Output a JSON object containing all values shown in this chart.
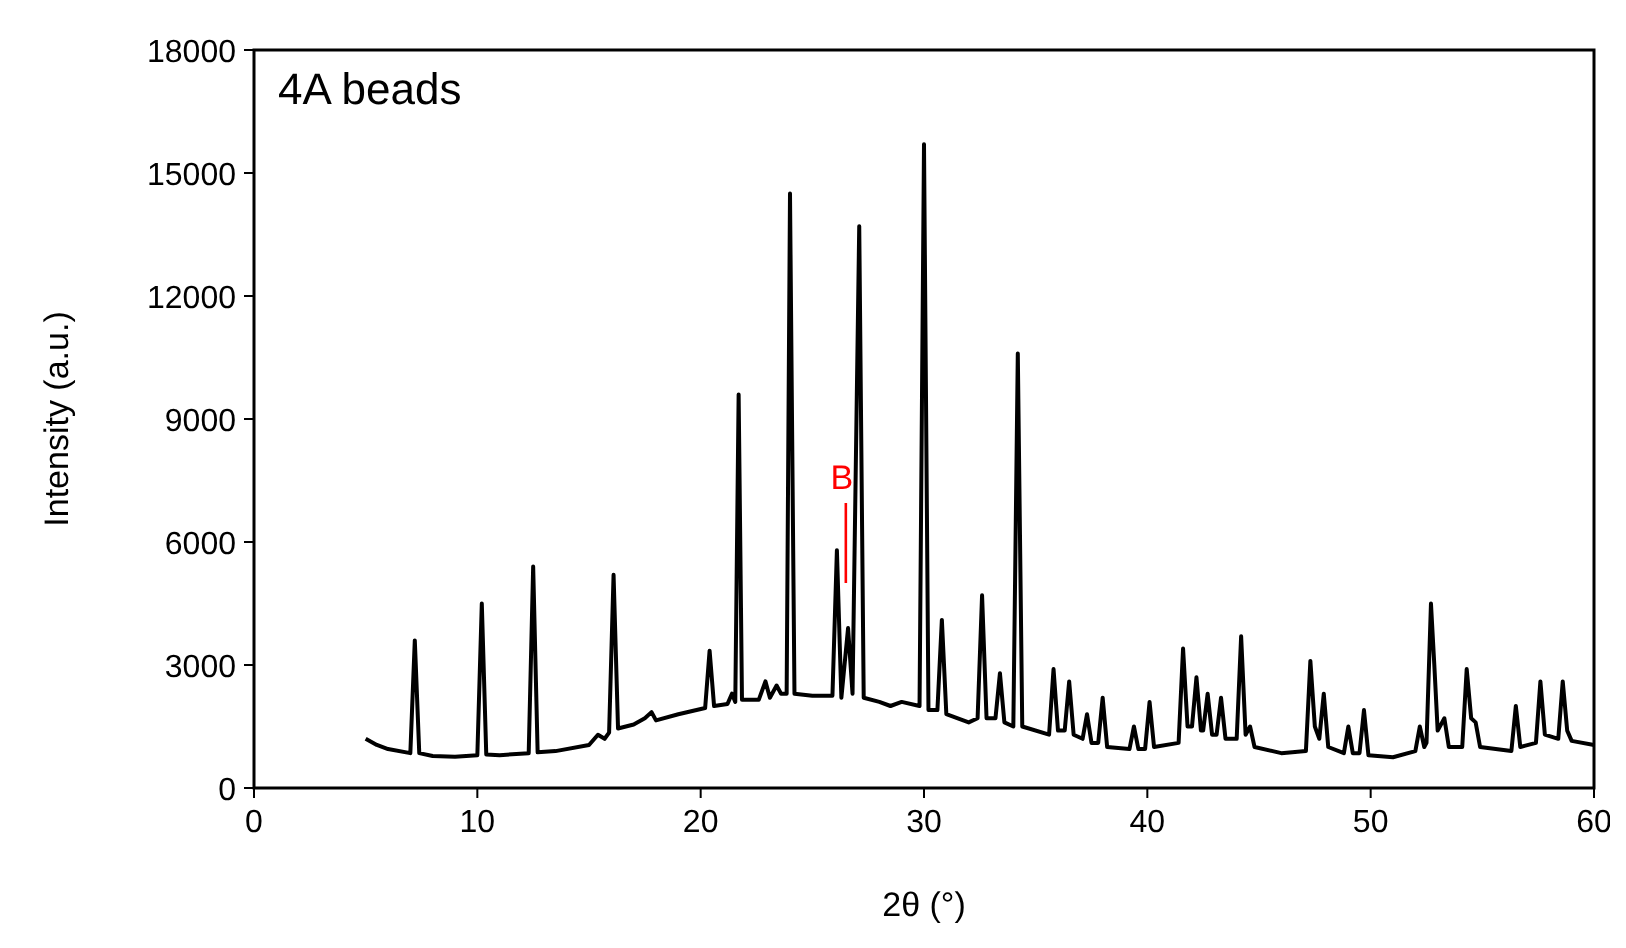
{
  "chart_data": {
    "type": "line",
    "xlabel": "2θ (°)",
    "ylabel": "Intensity (a.u.)",
    "xlim": [
      0,
      60
    ],
    "xticks": [
      0,
      10,
      20,
      30,
      40,
      50,
      60
    ],
    "ylim": [
      0,
      18000
    ],
    "yticks": [
      0,
      3000,
      6000,
      9000,
      12000,
      15000,
      18000
    ],
    "grid": false,
    "marker": "none",
    "line_style": "solid",
    "annotations": [
      "4A beads",
      {
        "text": "B",
        "x": 26.5,
        "y": 5000
      }
    ],
    "series": [
      {
        "color": "#000000",
        "x": [
          5,
          5.5,
          6,
          7.0,
          7.2,
          7.4,
          8,
          9,
          10.0,
          10.2,
          10.4,
          11,
          12.3,
          12.5,
          12.7,
          13.5,
          15,
          15.4,
          15.7,
          15.9,
          16.1,
          16.3,
          17,
          17.5,
          17.8,
          18,
          19,
          20.2,
          20.4,
          20.6,
          21.2,
          21.4,
          21.55,
          21.7,
          21.85,
          22.6,
          22.9,
          23.1,
          23.4,
          23.6,
          23.85,
          24.0,
          24.2,
          25,
          25.9,
          26.1,
          26.3,
          26.6,
          26.8,
          27.1,
          27.3,
          28,
          28.5,
          29,
          29.8,
          30.0,
          30.2,
          30.6,
          30.8,
          31.0,
          32.0,
          32.4,
          32.6,
          32.8,
          33.2,
          33.4,
          33.6,
          34.0,
          34.2,
          34.4,
          35.6,
          35.8,
          36.0,
          36.3,
          36.5,
          36.7,
          37.1,
          37.3,
          37.5,
          37.8,
          38.0,
          38.2,
          39.2,
          39.4,
          39.6,
          39.9,
          40.1,
          40.3,
          41.4,
          41.6,
          41.8,
          42.0,
          42.2,
          42.4,
          42.5,
          42.7,
          42.9,
          43.1,
          43.3,
          43.5,
          44.0,
          44.2,
          44.4,
          44.6,
          44.8,
          46,
          47.1,
          47.3,
          47.5,
          47.7,
          47.9,
          48.1,
          48.8,
          49.0,
          49.2,
          49.5,
          49.7,
          49.9,
          51,
          52.0,
          52.2,
          52.4,
          52.5,
          52.7,
          52.85,
          53.0,
          53.3,
          53.5,
          54.1,
          54.3,
          54.5,
          54.7,
          54.9,
          56.3,
          56.5,
          56.7,
          57.4,
          57.6,
          57.8,
          58.4,
          58.6,
          58.8,
          59,
          60
        ],
        "values": [
          1200,
          1050,
          950,
          850,
          3600,
          850,
          780,
          760,
          800,
          4500,
          820,
          800,
          850,
          5400,
          870,
          900,
          1050,
          1300,
          1200,
          1350,
          5200,
          1450,
          1550,
          1700,
          1850,
          1650,
          1800,
          1950,
          3350,
          2000,
          2050,
          2300,
          2100,
          9600,
          2150,
          2150,
          2600,
          2200,
          2500,
          2300,
          2300,
          14500,
          2300,
          2250,
          2250,
          5800,
          2200,
          3900,
          2300,
          13700,
          2200,
          2100,
          2000,
          2100,
          2000,
          15700,
          1900,
          1900,
          4100,
          1800,
          1600,
          1700,
          4700,
          1700,
          1700,
          2800,
          1600,
          1500,
          10600,
          1500,
          1300,
          2900,
          1400,
          1400,
          2600,
          1300,
          1200,
          1800,
          1100,
          1100,
          2200,
          1000,
          950,
          1500,
          950,
          950,
          2100,
          1000,
          1100,
          3400,
          1500,
          1500,
          2700,
          1400,
          1400,
          2300,
          1300,
          1300,
          2200,
          1200,
          1200,
          3700,
          1300,
          1500,
          1000,
          850,
          900,
          3100,
          1500,
          1200,
          2300,
          1000,
          850,
          1500,
          850,
          850,
          1900,
          800,
          750,
          900,
          1500,
          1000,
          1100,
          4500,
          3000,
          1400,
          1700,
          1000,
          1000,
          2900,
          1700,
          1600,
          1000,
          900,
          2000,
          1000,
          1100,
          2600,
          1300,
          1200,
          2600,
          1400,
          1150,
          1050
        ]
      }
    ]
  }
}
